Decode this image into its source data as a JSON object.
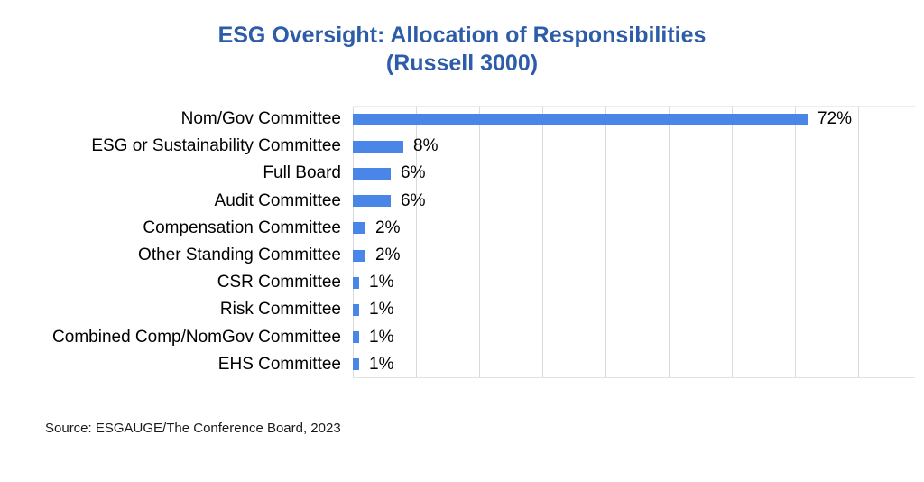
{
  "title": {
    "line1": "ESG Oversight: Allocation of Responsibilities",
    "line2": "(Russell 3000)"
  },
  "source": "Source: ESGAUGE/The Conference Board, 2023",
  "colors": {
    "title": "#2d5ca8",
    "bar": "#4a86e8",
    "gridline": "#d9d9d9",
    "label": "#000000"
  },
  "chart_data": {
    "type": "bar",
    "orientation": "horizontal",
    "title": "ESG Oversight: Allocation of Responsibilities (Russell 3000)",
    "xlabel": "",
    "ylabel": "",
    "xlim": [
      0,
      80
    ],
    "gridline_interval": 10,
    "grid": true,
    "legend": false,
    "categories": [
      "Nom/Gov Committee",
      "ESG or Sustainability Committee",
      "Full Board",
      "Audit Committee",
      "Compensation Committee",
      "Other Standing Committee",
      "CSR Committee",
      "Risk Committee",
      "Combined Comp/NomGov Committee",
      "EHS Committee"
    ],
    "values": [
      72,
      8,
      6,
      6,
      2,
      2,
      1,
      1,
      1,
      1
    ],
    "value_labels": [
      "72%",
      "8%",
      "6%",
      "6%",
      "2%",
      "2%",
      "1%",
      "1%",
      "1%",
      "1%"
    ]
  }
}
